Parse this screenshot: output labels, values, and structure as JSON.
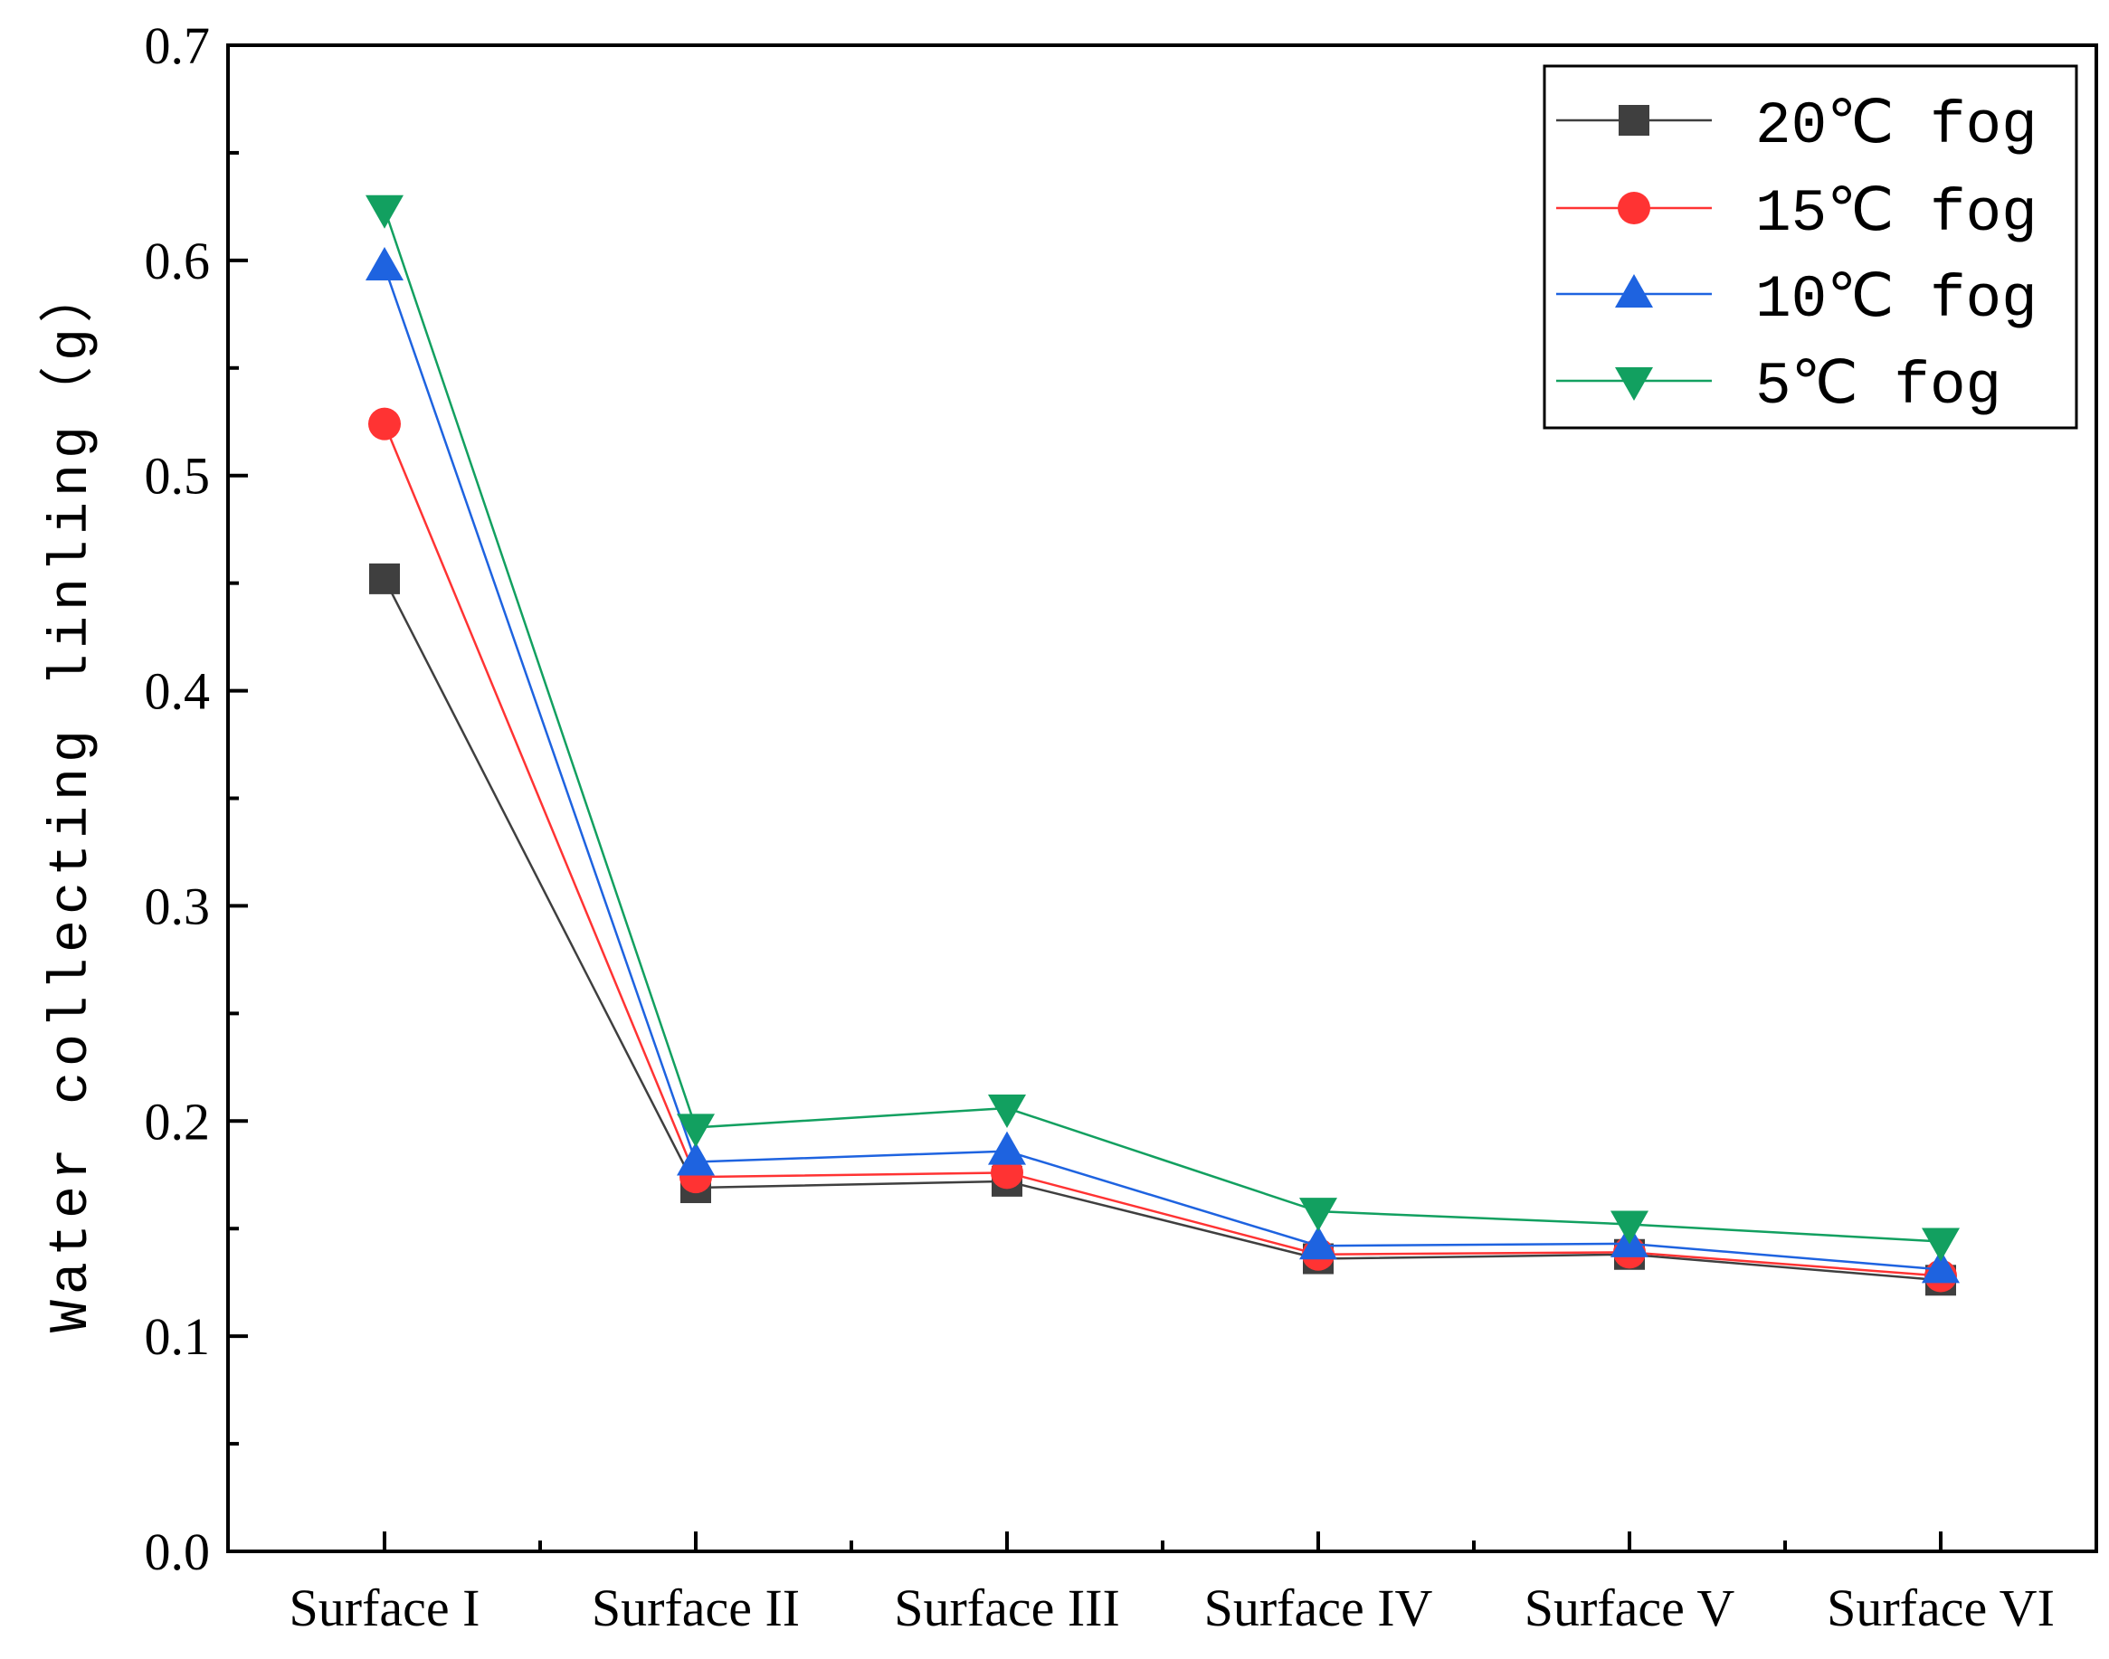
{
  "chart_data": {
    "type": "line",
    "title": "",
    "xlabel": "",
    "ylabel": "Water collecting linling（g）",
    "ylim": [
      0,
      0.7
    ],
    "yticks": [
      "0.0",
      "0.1",
      "0.2",
      "0.3",
      "0.4",
      "0.5",
      "0.6",
      "0.7"
    ],
    "categories": [
      "Surface I",
      "Surface II",
      "Surface III",
      "Surface IV",
      "Surface V",
      "Surface VI"
    ],
    "legend_position": "top-right",
    "series": [
      {
        "name": "20℃ fog",
        "color": "#3f3f3f",
        "marker": "square",
        "values": [
          0.452,
          0.169,
          0.172,
          0.136,
          0.138,
          0.126
        ]
      },
      {
        "name": "15℃ fog",
        "color": "#ff3333",
        "marker": "circle",
        "values": [
          0.524,
          0.174,
          0.176,
          0.138,
          0.139,
          0.128
        ]
      },
      {
        "name": "10℃ fog",
        "color": "#1e63e0",
        "marker": "triangle-up",
        "values": [
          0.597,
          0.181,
          0.186,
          0.142,
          0.143,
          0.131
        ]
      },
      {
        "name": "5℃ fog",
        "color": "#12a060",
        "marker": "triangle-down",
        "values": [
          0.624,
          0.197,
          0.206,
          0.158,
          0.152,
          0.144
        ]
      }
    ]
  }
}
